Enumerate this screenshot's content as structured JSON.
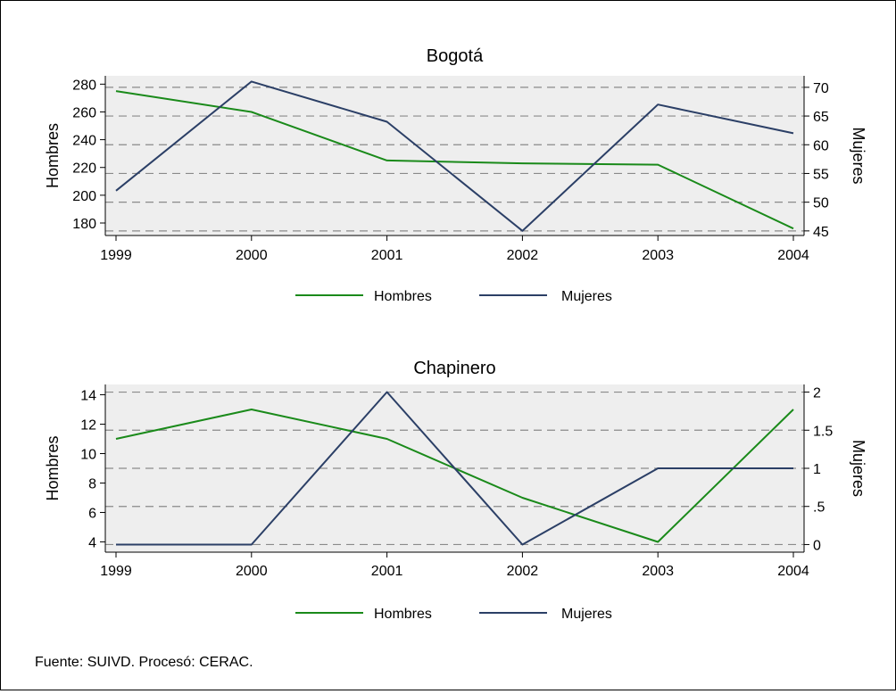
{
  "source_note": "Fuente: SUIVD. Procesó: CERAC.",
  "chart_data": [
    {
      "type": "line",
      "title": "Bogotá",
      "x": [
        1999,
        2000,
        2001,
        2002,
        2003,
        2004
      ],
      "x_tick_labels": [
        "1999",
        "2000",
        "2001",
        "2002",
        "2003",
        "2004"
      ],
      "ylabel": "Hombres",
      "ylabel_right": "Mujeres",
      "ylim": [
        171,
        286
      ],
      "y_ticks": [
        180,
        200,
        220,
        240,
        260,
        280
      ],
      "y_tick_labels": [
        "180",
        "200",
        "220",
        "240",
        "260",
        "280"
      ],
      "ylim_right": [
        44.2,
        72.0
      ],
      "y_ticks_right": [
        45,
        50,
        55,
        60,
        65,
        70
      ],
      "y_tick_labels_right": [
        "45",
        "50",
        "55",
        "60",
        "65",
        "70"
      ],
      "grid": "dashed, at right-axis ticks",
      "legend_position": "bottom",
      "series": [
        {
          "name": "Hombres",
          "axis": "left",
          "color": "#1a8a1a",
          "values": [
            275,
            260,
            225,
            223,
            222,
            176
          ]
        },
        {
          "name": "Mujeres",
          "axis": "right",
          "color": "#2b3f66",
          "values": [
            52,
            71,
            64,
            45,
            67,
            62
          ]
        }
      ]
    },
    {
      "type": "line",
      "title": "Chapinero",
      "x": [
        1999,
        2000,
        2001,
        2002,
        2003,
        2004
      ],
      "x_tick_labels": [
        "1999",
        "2000",
        "2001",
        "2002",
        "2003",
        "2004"
      ],
      "ylabel": "Hombres",
      "ylabel_right": "Mujeres",
      "ylim": [
        3.3,
        14.7
      ],
      "y_ticks": [
        4,
        6,
        8,
        10,
        12,
        14
      ],
      "y_tick_labels": [
        "4",
        "6",
        "8",
        "10",
        "12",
        "14"
      ],
      "ylim_right": [
        -0.1,
        2.1
      ],
      "y_ticks_right": [
        0,
        0.5,
        1,
        1.5,
        2
      ],
      "y_tick_labels_right": [
        "0",
        ".5",
        "1",
        "1.5",
        "2"
      ],
      "grid": "dashed, at right-axis ticks",
      "legend_position": "bottom",
      "series": [
        {
          "name": "Hombres",
          "axis": "left",
          "color": "#1a8a1a",
          "values": [
            11,
            13,
            11,
            7,
            4,
            13
          ]
        },
        {
          "name": "Mujeres",
          "axis": "right",
          "color": "#2b3f66",
          "values": [
            0,
            0,
            2,
            0,
            1,
            1
          ]
        }
      ]
    }
  ]
}
